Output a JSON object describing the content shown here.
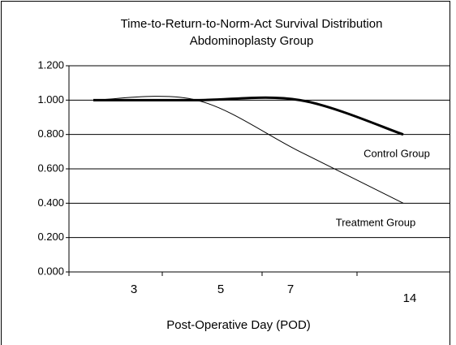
{
  "chart_data": {
    "type": "line",
    "smooth": true,
    "title": "Time-to-Return-to-Norm-Act Survival Distribution",
    "subtitle": "Abdominoplasty Group",
    "x_label": "Post-Operative Day (POD)",
    "categories": [
      "3",
      "5",
      "7",
      "14"
    ],
    "series": [
      {
        "name": "Control Group",
        "color": "#000000",
        "line_width": 3,
        "values": [
          1.0,
          1.0,
          1.0,
          0.8
        ]
      },
      {
        "name": "Treatment Group",
        "color": "#000000",
        "line_width": 1,
        "values": [
          1.0,
          1.0,
          0.7,
          0.4
        ]
      }
    ],
    "ylim": [
      0,
      1.2
    ],
    "yticks": [
      {
        "value": 0,
        "label": "0.000"
      },
      {
        "value": 0.2,
        "label": "0.200"
      },
      {
        "value": 0.4,
        "label": "0.400"
      },
      {
        "value": 0.6,
        "label": "0.600"
      },
      {
        "value": 0.8,
        "label": "0.800"
      },
      {
        "value": 1.0,
        "label": "1.000"
      },
      {
        "value": 1.2,
        "label": "1.200"
      }
    ],
    "grid": true
  }
}
